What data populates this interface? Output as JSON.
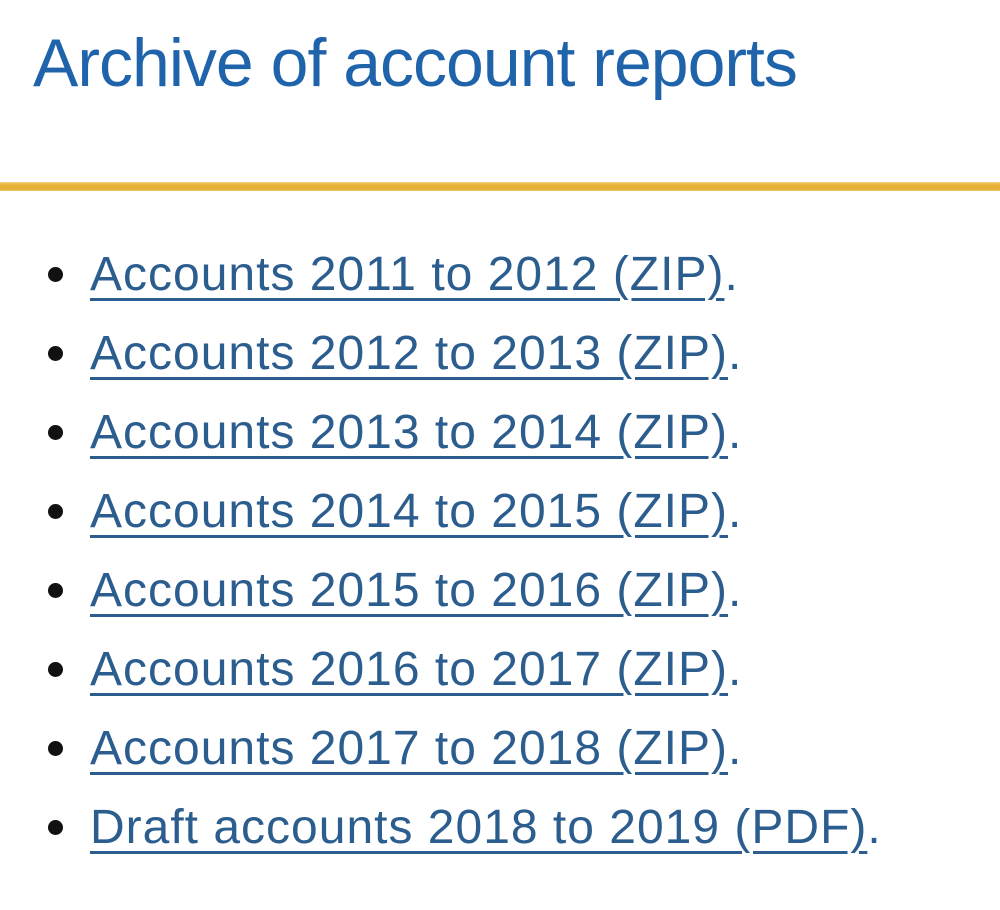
{
  "page": {
    "title": "Archive of account reports"
  },
  "colors": {
    "heading_blue": "#1f63ab",
    "link_blue": "#2c5d8f",
    "divider_gold": "#e8b33c",
    "bullet_black": "#111111",
    "background": "#ffffff"
  },
  "report_list": {
    "items": [
      {
        "link_label": "Accounts 2011 to 2012 (ZIP)",
        "suffix": "."
      },
      {
        "link_label": "Accounts 2012 to 2013 (ZIP)",
        "suffix": "."
      },
      {
        "link_label": "Accounts 2013 to 2014 (ZIP)",
        "suffix": "."
      },
      {
        "link_label": "Accounts 2014 to 2015 (ZIP)",
        "suffix": "."
      },
      {
        "link_label": "Accounts 2015 to 2016 (ZIP)",
        "suffix": "."
      },
      {
        "link_label": "Accounts 2016 to 2017 (ZIP)",
        "suffix": "."
      },
      {
        "link_label": "Accounts 2017 to 2018 (ZIP)",
        "suffix": "."
      },
      {
        "link_label": "Draft accounts 2018 to 2019 (PDF)",
        "suffix": "."
      }
    ]
  }
}
